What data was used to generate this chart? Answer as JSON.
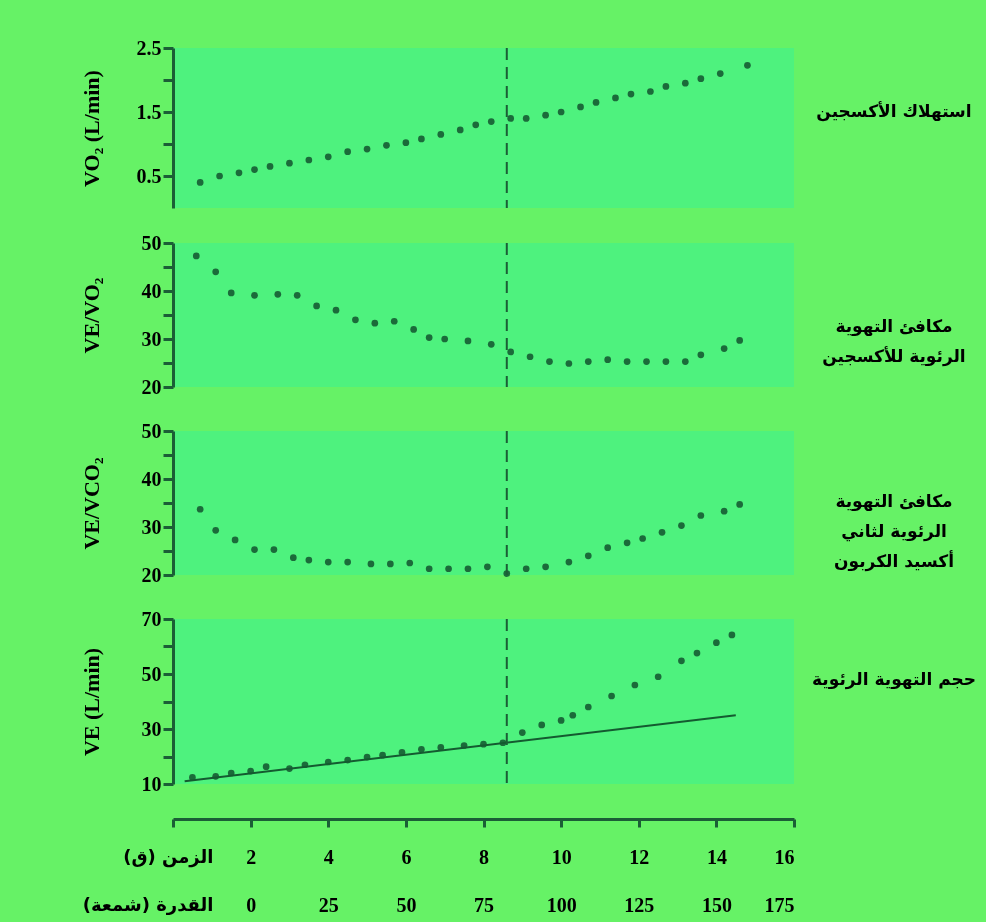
{
  "chart_data": [
    {
      "type": "scatter",
      "ylabel": "VO₂ (L/min)",
      "xlim": [
        0,
        16
      ],
      "ylim": [
        0,
        2.5
      ],
      "yticks": [
        0.5,
        {
          "value": 1,
          "label": null
        },
        1.5,
        {
          "value": 2,
          "label": null
        },
        2.5
      ],
      "tick_labels": "y",
      "marker": "circle",
      "ref_lines": [
        {
          "axis": "x",
          "value": 8.6,
          "line_style": "dashed",
          "color": "#1b5e36"
        }
      ],
      "series": [
        {
          "name": "استهلاك الأكسجين",
          "color": "#1b6b3a",
          "x": [
            0.7,
            1.2,
            1.7,
            2.1,
            2.5,
            3.0,
            3.5,
            4.0,
            4.5,
            5.0,
            5.5,
            6.0,
            6.4,
            6.9,
            7.4,
            7.8,
            8.2,
            8.7,
            9.1,
            9.6,
            10.0,
            10.5,
            10.9,
            11.4,
            11.8,
            12.3,
            12.7,
            13.2,
            13.6,
            14.1,
            14.8
          ],
          "values": [
            0.4,
            0.5,
            0.55,
            0.6,
            0.65,
            0.7,
            0.75,
            0.8,
            0.88,
            0.92,
            0.98,
            1.02,
            1.08,
            1.15,
            1.22,
            1.3,
            1.35,
            1.4,
            1.4,
            1.45,
            1.5,
            1.58,
            1.65,
            1.72,
            1.78,
            1.82,
            1.9,
            1.95,
            2.02,
            2.1,
            2.23
          ]
        }
      ]
    },
    {
      "type": "scatter",
      "ylabel": "VE/VO₂",
      "xlim": [
        0,
        16
      ],
      "ylim": [
        20,
        50
      ],
      "yticks": [
        20,
        {
          "value": 25,
          "label": null
        },
        30,
        {
          "value": 35,
          "label": null
        },
        40,
        {
          "value": 45,
          "label": null
        },
        50
      ],
      "tick_labels": "y",
      "marker": "circle",
      "ref_lines": [
        {
          "axis": "x",
          "value": 8.6,
          "line_style": "dashed",
          "color": "#1b5e36"
        }
      ],
      "series": [
        {
          "name": "مكافئ التهوية\nالرئوية للأكسجين",
          "color": "#1b6b3a",
          "x": [
            0.6,
            1.1,
            1.5,
            2.1,
            2.7,
            3.2,
            3.7,
            4.2,
            4.7,
            5.2,
            5.7,
            6.2,
            6.6,
            7.0,
            7.6,
            8.2,
            8.7,
            9.2,
            9.7,
            10.2,
            10.7,
            11.2,
            11.7,
            12.2,
            12.7,
            13.2,
            13.6,
            14.2,
            14.6
          ],
          "values": [
            47.3,
            44,
            39.6,
            39.1,
            39.3,
            39.1,
            36.9,
            36,
            34,
            33.3,
            33.7,
            32,
            30.3,
            30,
            29.6,
            28.9,
            27.3,
            26.3,
            25.3,
            24.9,
            25.3,
            25.7,
            25.3,
            25.3,
            25.3,
            25.3,
            26.7,
            28,
            29.7
          ]
        }
      ]
    },
    {
      "type": "scatter",
      "ylabel": "VE/VCO₂",
      "xlim": [
        0,
        16
      ],
      "ylim": [
        20,
        50
      ],
      "yticks": [
        20,
        {
          "value": 25,
          "label": null
        },
        30,
        {
          "value": 35,
          "label": null
        },
        40,
        {
          "value": 45,
          "label": null
        },
        50
      ],
      "tick_labels": "y",
      "marker": "circle",
      "ref_lines": [
        {
          "axis": "x",
          "value": 8.6,
          "line_style": "dashed",
          "color": "#1b5e36"
        }
      ],
      "series": [
        {
          "name": "مكافئ التهوية\nالرئوية لثاني\nأكسيد الكربون",
          "color": "#1b6b3a",
          "x": [
            0.7,
            1.1,
            1.6,
            2.1,
            2.6,
            3.1,
            3.5,
            4.0,
            4.5,
            5.1,
            5.6,
            6.1,
            6.6,
            7.1,
            7.6,
            8.1,
            8.6,
            9.1,
            9.6,
            10.2,
            10.7,
            11.2,
            11.7,
            12.1,
            12.6,
            13.1,
            13.6,
            14.2,
            14.6
          ],
          "values": [
            33.7,
            29.3,
            27.3,
            25.3,
            25.3,
            23.6,
            23.1,
            22.7,
            22.7,
            22.3,
            22.3,
            22.5,
            21.3,
            21.3,
            21.3,
            21.7,
            20.3,
            21.3,
            21.7,
            22.7,
            24,
            25.7,
            26.7,
            27.6,
            28.9,
            30.3,
            32.4,
            33.3,
            34.7
          ]
        }
      ]
    },
    {
      "type": "scatter",
      "ylabel": "VE (L/min)",
      "xlabel": "الزمن (ق)",
      "x2label": "القدرة (شمعة)",
      "xlim": [
        0,
        16
      ],
      "xticks": [
        {
          "value": 0,
          "label": null
        },
        2,
        4,
        6,
        8,
        10,
        12,
        14,
        16
      ],
      "x2lim": [
        -25,
        175
      ],
      "x2ticks": [
        0,
        25,
        50,
        75,
        100,
        125,
        150,
        175
      ],
      "ylim": [
        10,
        70
      ],
      "yticks": [
        10,
        {
          "value": 20,
          "label": null
        },
        30,
        {
          "value": 40,
          "label": null
        },
        50,
        {
          "value": 60,
          "label": null
        },
        70
      ],
      "marker": "circle",
      "ref_lines": [
        {
          "axis": "x",
          "value": 8.6,
          "line_style": "dashed",
          "color": "#1b5e36"
        }
      ],
      "series": [
        {
          "name": "حجم التهوية الرئوية",
          "color": "#1b6b3a",
          "x": [
            0.5,
            1.1,
            1.5,
            2.0,
            2.4,
            3.0,
            3.4,
            4.0,
            4.5,
            5.0,
            5.4,
            5.9,
            6.4,
            6.9,
            7.5,
            8.0,
            8.5,
            9.0,
            9.5,
            10.0,
            10.3,
            10.7,
            11.3,
            11.9,
            12.5,
            13.1,
            13.5,
            14.0,
            14.4
          ],
          "values": [
            12.4,
            12.8,
            14,
            14.7,
            16.3,
            15.6,
            17,
            18,
            18.7,
            19.8,
            20.5,
            21.5,
            22.6,
            23.3,
            24,
            24.5,
            25,
            28.7,
            31.5,
            33.1,
            35,
            38,
            42,
            46,
            49,
            54.8,
            57.6,
            61.4,
            64.2
          ]
        },
        {
          "type": "line",
          "color": "#145a30",
          "line_style": "solid",
          "marker": "none",
          "x": [
            0.3,
            14.5
          ],
          "values": [
            11,
            35
          ]
        }
      ]
    }
  ]
}
